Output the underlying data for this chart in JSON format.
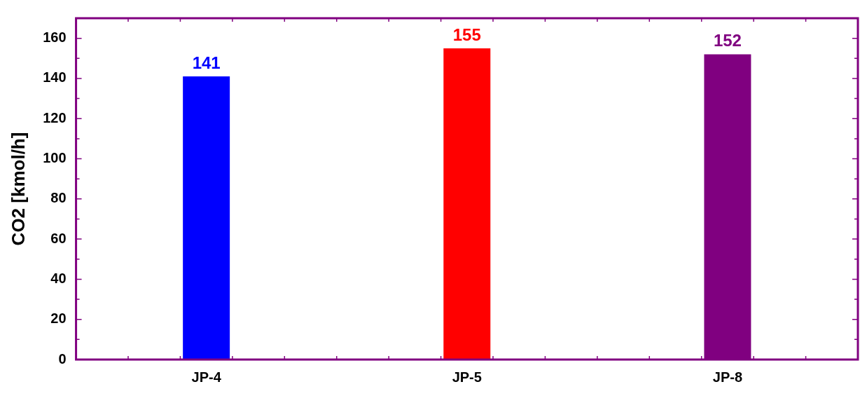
{
  "chart_data": {
    "type": "bar",
    "ylabel": "CO2 [kmol/h]",
    "categories": [
      "JP-4",
      "JP-5",
      "JP-8"
    ],
    "values": [
      141,
      155,
      152
    ],
    "colors": [
      "#0000ff",
      "#ff0000",
      "#800080"
    ],
    "ylim": [
      0,
      170
    ],
    "yticks": [
      0,
      20,
      40,
      60,
      80,
      100,
      120,
      140,
      160
    ],
    "data_labels": true,
    "grid": false,
    "legend": false
  }
}
